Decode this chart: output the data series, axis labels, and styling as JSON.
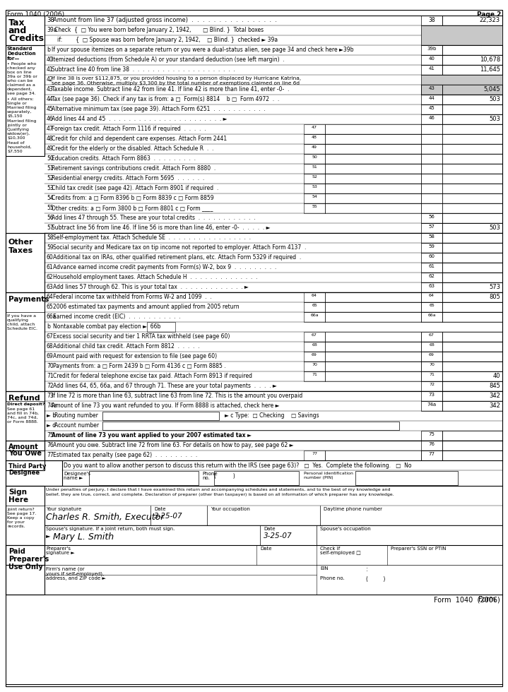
{
  "title_header": "Form 1040 (2006)",
  "page_num": "Page 2",
  "bg_color": "#ffffff",
  "border_color": "#000000",
  "gray_color": "#c8c8c8",
  "penalty_line1": "Under penalties of perjury, I declare that I have examined this return and accompanying schedules and statements, and to the best of my knowledge and",
  "penalty_line2": "belief, they are true, correct, and complete. Declaration of preparer (other than taxpayer) is based on all information of which preparer has any knowledge.",
  "sig1_value": "Charles R. Smith, Executor",
  "sig2_value": "Mary L. Smith",
  "date1_value": "3-25-07",
  "date2_value": "3-25-07",
  "footer": "Form  1040  (2006)"
}
